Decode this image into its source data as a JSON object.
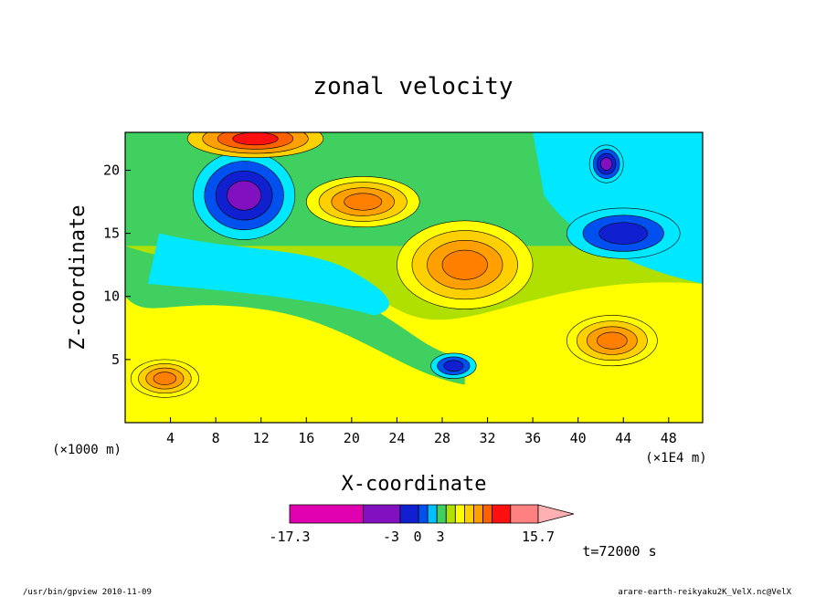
{
  "chart_data": {
    "type": "heatmap",
    "title": "zonal velocity",
    "xlabel": "X-coordinate",
    "ylabel": "Z-coordinate",
    "x_scale_note": "(×1E4 m)",
    "y_scale_note": "(×1000 m)",
    "x_ticks": [
      "4",
      "8",
      "12",
      "16",
      "20",
      "24",
      "28",
      "32",
      "36",
      "40",
      "44",
      "48"
    ],
    "x_tick_values": [
      4,
      8,
      12,
      16,
      20,
      24,
      28,
      32,
      36,
      40,
      44,
      48
    ],
    "y_ticks": [
      "5",
      "10",
      "15",
      "20"
    ],
    "y_tick_values": [
      5,
      10,
      15,
      20
    ],
    "xlim": [
      0,
      51
    ],
    "ylim": [
      0,
      23
    ],
    "colorbar": {
      "min_label": "-17.3",
      "max_label": "15.7",
      "mid_labels": [
        "-3",
        "0",
        "3"
      ],
      "colors": [
        "#e000b0",
        "#8010c0",
        "#1020d0",
        "#0050f0",
        "#00c0ff",
        "#40d060",
        "#b0e000",
        "#ffff00",
        "#ffd000",
        "#ffa000",
        "#ff6000",
        "#ff1010",
        "#ff8080",
        "#ffb0b0"
      ],
      "widths": [
        8,
        4,
        2,
        1,
        1,
        1,
        1,
        1,
        1,
        1,
        1,
        2,
        3,
        0
      ],
      "extend_label_ref": "max"
    },
    "time_label": "t=72000 s",
    "features": [
      {
        "x": 10.5,
        "z": 18.0,
        "rx": 4.5,
        "rz": 3.5,
        "level": "negative-strong"
      },
      {
        "x": 30.0,
        "z": 12.5,
        "rx": 6.0,
        "rz": 3.5,
        "level": "positive"
      },
      {
        "x": 21.0,
        "z": 17.5,
        "rx": 5.0,
        "rz": 2.0,
        "level": "positive"
      },
      {
        "x": 43.0,
        "z": 6.5,
        "rx": 4.0,
        "rz": 2.0,
        "level": "positive"
      },
      {
        "x": 11.5,
        "z": 22.5,
        "rx": 6.0,
        "rz": 1.5,
        "level": "positive-strong"
      },
      {
        "x": 42.5,
        "z": 20.5,
        "rx": 1.5,
        "rz": 1.5,
        "level": "negative-strong"
      },
      {
        "x": 44.0,
        "z": 15.0,
        "rx": 5.0,
        "rz": 2.0,
        "level": "negative"
      },
      {
        "x": 3.5,
        "z": 3.5,
        "rx": 3.0,
        "rz": 1.5,
        "level": "positive"
      },
      {
        "x": 29.0,
        "z": 4.5,
        "rx": 2.0,
        "rz": 1.0,
        "level": "negative"
      }
    ]
  },
  "footer": {
    "left": "/usr/bin/gpview   2010-11-09",
    "right": "arare-earth-reikyaku2K_VelX.nc@VelX"
  }
}
